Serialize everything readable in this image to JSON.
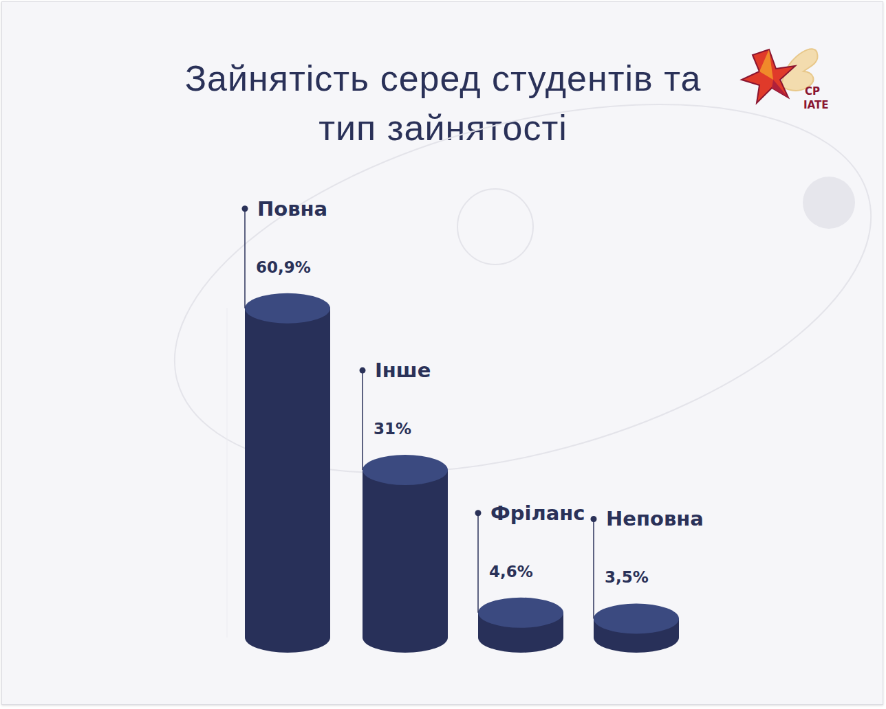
{
  "chart_data": {
    "type": "bar",
    "title": "Зайнятість серед студентів та тип зайнятості",
    "categories": [
      "Повна",
      "Інше",
      "Фріланс",
      "Неповна"
    ],
    "values": [
      60.9,
      31,
      4.6,
      3.5
    ],
    "value_labels": [
      "60,9%",
      "31%",
      "4,6%",
      "3,5%"
    ],
    "color": "#283059",
    "ylim": [
      0,
      61
    ],
    "data_labels": true,
    "tick_labels": false,
    "grid": false,
    "annotations": [
      "CP",
      "IATE"
    ]
  }
}
